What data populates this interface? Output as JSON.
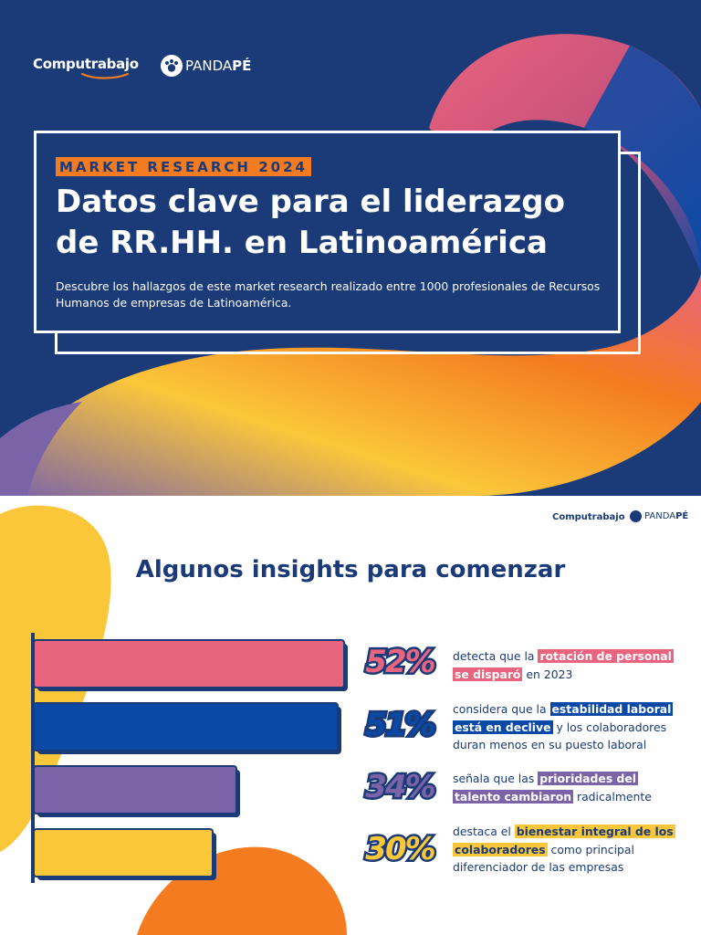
{
  "colors": {
    "navy": "#1a3a78",
    "pink": "#e9647e",
    "blue": "#0a4aa6",
    "purple": "#7b63a8",
    "yellow": "#fbc73a",
    "orange": "#f47b20"
  },
  "hero": {
    "logo_computrabajo": "Computrabajo",
    "logo_panda_light": "PANDA",
    "logo_panda_bold": "PÉ",
    "tag": "MARKET RESEARCH 2024",
    "title": "Datos clave para el liderazgo de RR.HH. en Latinoamérica",
    "subtitle": "Descubre los hallazgos de este market research realizado entre 1000 profesionales de Recursos Humanos de empresas de Latinoamérica."
  },
  "slide2": {
    "logo_computrabajo": "Computrabajo",
    "logo_panda_light": "PANDA",
    "logo_panda_bold": "PÉ",
    "title": "Algunos insights para comenzar",
    "insights": [
      {
        "pct_label": "52%",
        "before": "detecta que la ",
        "highlight": "rotación de personal se disparó",
        "after": " en 2023"
      },
      {
        "pct_label": "51%",
        "before": "considera que la ",
        "highlight": "estabilidad laboral está en declive",
        "after": " y los colaboradores duran menos en su puesto laboral"
      },
      {
        "pct_label": "34%",
        "before": "señala que las ",
        "highlight": "prioridades del talento cambiaron",
        "after": " radicalmente"
      },
      {
        "pct_label": "30%",
        "before": "destaca el ",
        "highlight": "bienestar integral de los colaboradores",
        "after": " como principal diferenciador de las empresas"
      }
    ]
  },
  "chart_data": {
    "type": "bar",
    "orientation": "horizontal",
    "categories": [
      "rotación de personal se disparó",
      "estabilidad laboral está en declive",
      "prioridades del talento cambiaron",
      "bienestar integral de los colaboradores"
    ],
    "values": [
      52,
      51,
      34,
      30
    ],
    "unit": "%",
    "bar_colors": [
      "#e9647e",
      "#0a4aa6",
      "#7b63a8",
      "#fbc73a"
    ],
    "xlim": [
      0,
      52
    ],
    "grid": false,
    "title": "Algunos insights para comenzar"
  }
}
